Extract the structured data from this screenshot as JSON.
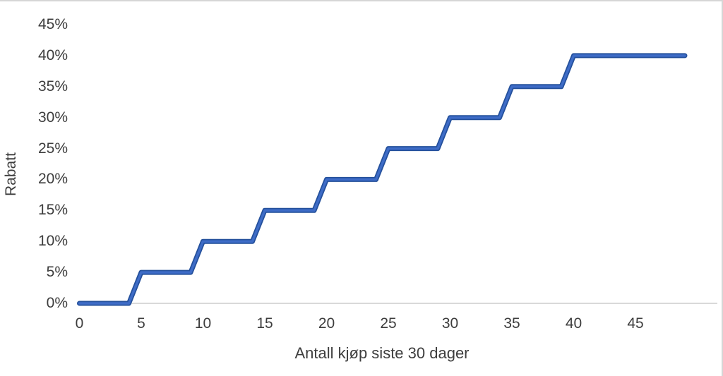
{
  "chart_data": {
    "type": "line",
    "subtype": "step",
    "title": "",
    "xlabel": "Antall kjøp siste 30 dager",
    "ylabel": "Rabatt",
    "x_ticks": [
      "0",
      "5",
      "10",
      "15",
      "20",
      "25",
      "30",
      "35",
      "40",
      "45"
    ],
    "y_ticks": [
      "0%",
      "5%",
      "10%",
      "15%",
      "20%",
      "25%",
      "30%",
      "35%",
      "40%",
      "45%"
    ],
    "xlim": [
      0,
      49
    ],
    "ylim_percent": [
      0,
      45
    ],
    "grid": false,
    "legend": false,
    "x": [
      0,
      1,
      2,
      3,
      4,
      5,
      6,
      7,
      8,
      9,
      10,
      11,
      12,
      13,
      14,
      15,
      16,
      17,
      18,
      19,
      20,
      21,
      22,
      23,
      24,
      25,
      26,
      27,
      28,
      29,
      30,
      31,
      32,
      33,
      34,
      35,
      36,
      37,
      38,
      39,
      40,
      41,
      42,
      43,
      44,
      45,
      46,
      47,
      48,
      49
    ],
    "y_percent": [
      0,
      0,
      0,
      0,
      0,
      5,
      5,
      5,
      5,
      5,
      10,
      10,
      10,
      10,
      10,
      15,
      15,
      15,
      15,
      15,
      20,
      20,
      20,
      20,
      20,
      25,
      25,
      25,
      25,
      25,
      30,
      30,
      30,
      30,
      30,
      35,
      35,
      35,
      35,
      35,
      40,
      40,
      40,
      40,
      40,
      40,
      40,
      40,
      40,
      40
    ],
    "colors": {
      "line": "#3E6CC7",
      "line_edge": "#24509B",
      "axis_line": "#D9D9D9",
      "text": "#3D3D3D",
      "background": "#FFFFFF"
    }
  }
}
